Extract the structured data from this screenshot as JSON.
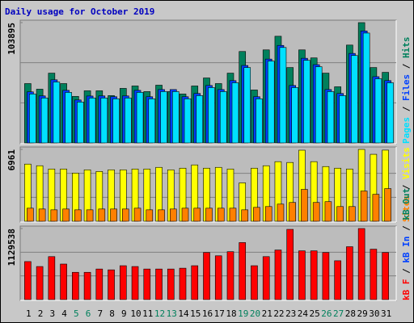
{
  "chart_data": [
    {
      "type": "bar",
      "title": "Daily usage for October 2019",
      "ylim": [
        0,
        103895
      ],
      "yticks": [
        103895
      ],
      "legend_separator": " / ",
      "series": [
        {
          "name": "Pages",
          "color": "#00e0ff",
          "values": [
            42249,
            38786,
            52638,
            43634,
            35323,
            38786,
            38786,
            38093,
            38786,
            43634,
            38093,
            44326,
            44326,
            38093,
            40863,
            47789,
            44326,
            51945,
            65104,
            38093,
            70645,
            82419,
            47789,
            71338,
            65797,
            44326,
            40863,
            75493,
            94886,
            55408,
            51945
          ]
        },
        {
          "name": "Files",
          "color": "#0040ff",
          "values": [
            44100,
            40600,
            54500,
            45400,
            37100,
            40500,
            40600,
            39900,
            40600,
            45400,
            39900,
            46100,
            46100,
            39900,
            42700,
            49600,
            46100,
            53800,
            66900,
            39900,
            72400,
            84200,
            49600,
            73100,
            67600,
            46100,
            42700,
            77300,
            96700,
            57200,
            53800
          ]
        },
        {
          "name": "Hits",
          "color": "#00805c",
          "values": [
            51252,
            46405,
            60257,
            51252,
            40171,
            45019,
            45019,
            40864,
            47097,
            49175,
            44327,
            49868,
            44327,
            42250,
            49175,
            56102,
            51252,
            60257,
            78960,
            45712,
            80345,
            92119,
            65106,
            80345,
            73418,
            60257,
            48484,
            84500,
            103895,
            65106,
            60950
          ]
        }
      ]
    },
    {
      "type": "bar",
      "ylim": [
        0,
        6961
      ],
      "yticks": [
        6961
      ],
      "legend_separator": " / ",
      "series": [
        {
          "name": "Sites",
          "color": "#ff8000",
          "values": [
            1266,
            1187,
            1107,
            1187,
            1107,
            1107,
            1187,
            1187,
            1187,
            1266,
            1107,
            1107,
            1187,
            1266,
            1266,
            1266,
            1266,
            1266,
            1107,
            1345,
            1424,
            1661,
            1819,
            3085,
            1819,
            1898,
            1424,
            1424,
            2927,
            2610,
            3164
          ]
        },
        {
          "name": "Visits",
          "color": "#ffff00",
          "values": [
            5537,
            5379,
            5062,
            5062,
            4667,
            4983,
            4825,
            4983,
            4983,
            5062,
            5062,
            5221,
            4983,
            5142,
            5458,
            5142,
            5221,
            5062,
            3718,
            5142,
            5379,
            5774,
            5695,
            6882,
            5774,
            5300,
            5142,
            5062,
            6961,
            6486,
            6890
          ]
        }
      ]
    },
    {
      "type": "bar",
      "ylim": [
        0,
        1129538
      ],
      "yticks": [
        1129538
      ],
      "legend_separator": " / ",
      "categories": [
        "1",
        "2",
        "3",
        "4",
        "5",
        "6",
        "7",
        "8",
        "9",
        "10",
        "11",
        "12",
        "13",
        "14",
        "15",
        "16",
        "17",
        "18",
        "19",
        "20",
        "21",
        "22",
        "23",
        "24",
        "25",
        "26",
        "27",
        "28",
        "29",
        "30",
        "31"
      ],
      "category_colors": [
        "#000000",
        "#000000",
        "#000000",
        "#000000",
        "#00805c",
        "#00805c",
        "#000000",
        "#000000",
        "#000000",
        "#000000",
        "#000000",
        "#00805c",
        "#00805c",
        "#000000",
        "#000000",
        "#000000",
        "#000000",
        "#000000",
        "#00805c",
        "#00805c",
        "#000000",
        "#000000",
        "#000000",
        "#000000",
        "#000000",
        "#00805c",
        "#00805c",
        "#000000",
        "#000000",
        "#000000",
        "#000000"
      ],
      "series": [
        {
          "name": "kB F",
          "color": "#ff0000",
          "values": [
            604164,
            525360,
            682968,
            564762,
            433422,
            433422,
            485958,
            472824,
            538494,
            525360,
            485958,
            485958,
            485958,
            499092,
            538494,
            748638,
            696102,
            761772,
            906246,
            538494,
            682968,
            788040,
            1116390,
            774906,
            774906,
            748638,
            617298,
            840576,
            1129538,
            801174,
            748638
          ]
        },
        {
          "name": "kB In",
          "color": "#0040ff",
          "values": [
            null,
            null,
            null,
            null,
            null,
            null,
            null,
            null,
            null,
            null,
            null,
            null,
            null,
            null,
            null,
            null,
            null,
            null,
            null,
            null,
            null,
            null,
            null,
            null,
            null,
            null,
            null,
            null,
            null,
            null,
            null
          ]
        },
        {
          "name": "kB Out",
          "color": "#00805c",
          "values": [
            null,
            null,
            null,
            null,
            null,
            null,
            null,
            null,
            null,
            null,
            null,
            null,
            null,
            null,
            null,
            null,
            null,
            null,
            null,
            null,
            null,
            null,
            null,
            null,
            null,
            null,
            null,
            null,
            null,
            null,
            null
          ]
        }
      ]
    }
  ]
}
